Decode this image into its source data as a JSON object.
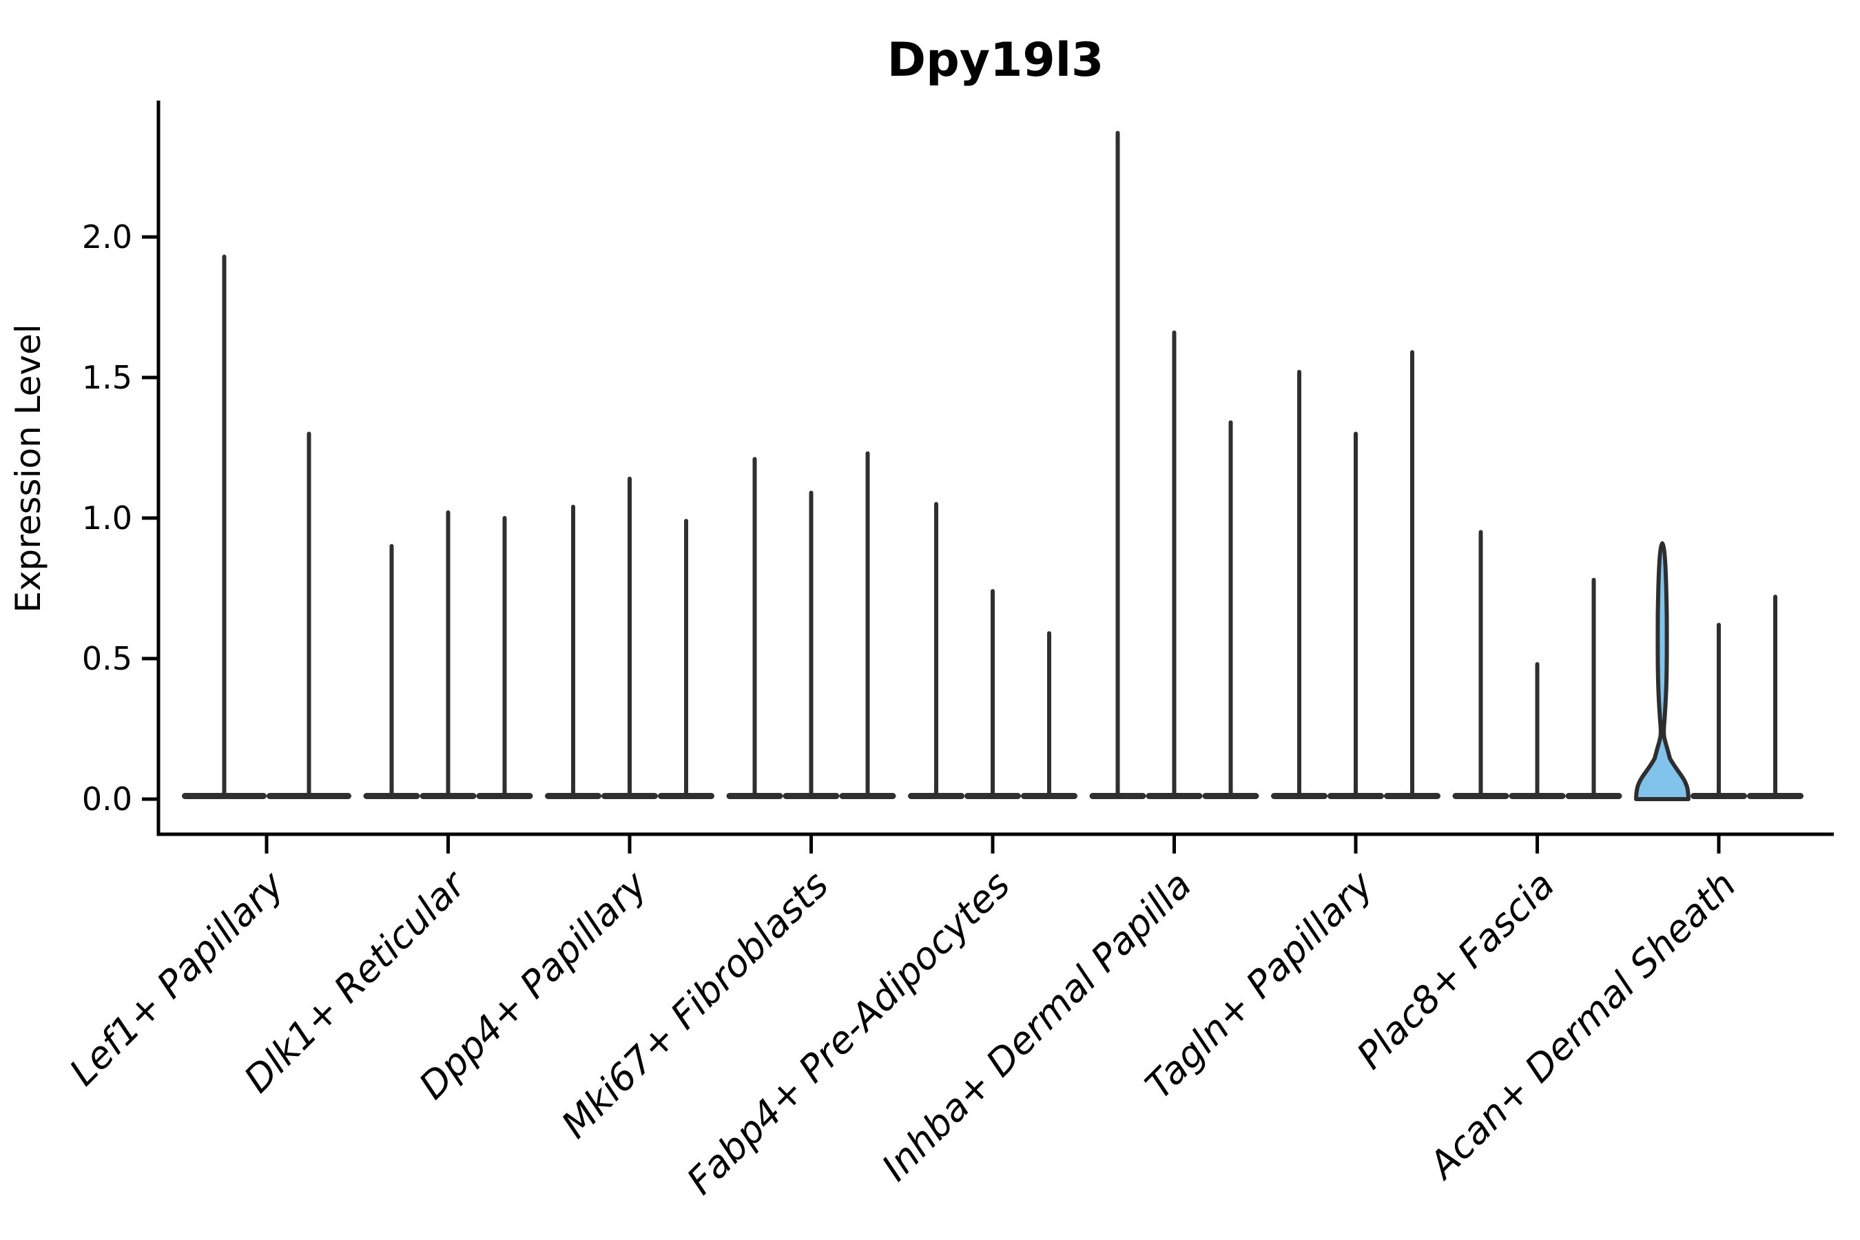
{
  "chart_data": {
    "type": "violin",
    "title": "Dpy19l3",
    "ylabel": "Expression Level",
    "xlabel": "",
    "ylim": [
      -0.13,
      2.48
    ],
    "yticks": {
      "values": [
        0.0,
        0.5,
        1.0,
        1.5,
        2.0
      ],
      "labels": [
        "0.0",
        "0.5",
        "1.0",
        "1.5",
        "2.0"
      ]
    },
    "grid": false,
    "legend": "none",
    "categories": [
      "Lef1+ Papillary",
      "Dlk1+ Reticular",
      "Dpp4+ Papillary",
      "Mki67+ Fibroblasts",
      "Fabp4+ Pre-Adipocytes",
      "Inhba+ Dermal Papilla",
      "Tagln+ Papillary",
      "Plac8+ Fascia",
      "Acan+ Dermal Sheath"
    ],
    "groups": [
      {
        "category": "Lef1+ Papillary",
        "violins": [
          {
            "peak": 1.93,
            "shape": "line"
          },
          {
            "peak": 1.3,
            "shape": "line"
          }
        ]
      },
      {
        "category": "Dlk1+ Reticular",
        "violins": [
          {
            "peak": 0.9,
            "shape": "line"
          },
          {
            "peak": 1.02,
            "shape": "line"
          },
          {
            "peak": 1.0,
            "shape": "line"
          }
        ]
      },
      {
        "category": "Dpp4+ Papillary",
        "violins": [
          {
            "peak": 1.04,
            "shape": "line"
          },
          {
            "peak": 1.14,
            "shape": "line"
          },
          {
            "peak": 0.99,
            "shape": "line"
          }
        ]
      },
      {
        "category": "Mki67+ Fibroblasts",
        "violins": [
          {
            "peak": 1.21,
            "shape": "line"
          },
          {
            "peak": 1.09,
            "shape": "line"
          },
          {
            "peak": 1.23,
            "shape": "line"
          }
        ]
      },
      {
        "category": "Fabp4+ Pre-Adipocytes",
        "violins": [
          {
            "peak": 1.05,
            "shape": "line"
          },
          {
            "peak": 0.74,
            "shape": "line"
          },
          {
            "peak": 0.59,
            "shape": "line"
          }
        ]
      },
      {
        "category": "Inhba+ Dermal Papilla",
        "violins": [
          {
            "peak": 2.37,
            "shape": "line"
          },
          {
            "peak": 1.66,
            "shape": "line"
          },
          {
            "peak": 1.34,
            "shape": "line"
          }
        ]
      },
      {
        "category": "Tagln+ Papillary",
        "violins": [
          {
            "peak": 1.52,
            "shape": "line"
          },
          {
            "peak": 1.3,
            "shape": "line"
          },
          {
            "peak": 1.59,
            "shape": "line"
          }
        ]
      },
      {
        "category": "Plac8+ Fascia",
        "violins": [
          {
            "peak": 0.95,
            "shape": "line"
          },
          {
            "peak": 0.48,
            "shape": "line"
          },
          {
            "peak": 0.78,
            "shape": "line"
          }
        ]
      },
      {
        "category": "Acan+ Dermal Sheath",
        "violins": [
          {
            "peak": 0.91,
            "shape": "kde",
            "highlight": true
          },
          {
            "peak": 0.62,
            "shape": "line"
          },
          {
            "peak": 0.72,
            "shape": "line"
          }
        ]
      }
    ],
    "colors": {
      "violin_line": "#2f2f2f",
      "axis": "#000000",
      "text": "#000000",
      "highlight_fill": "#82c3ec",
      "highlight_stroke": "#2e2e2e",
      "background": "#ffffff"
    }
  }
}
